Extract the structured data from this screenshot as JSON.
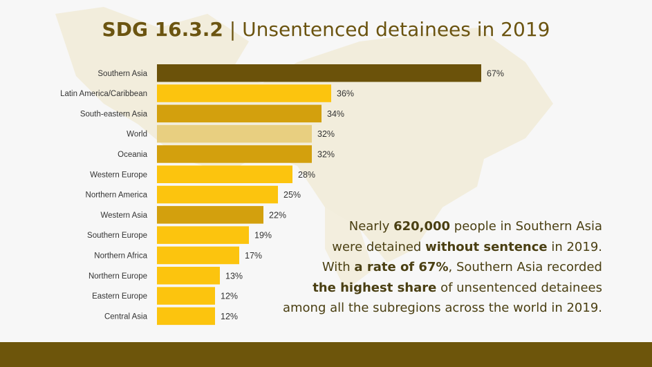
{
  "title": {
    "code": "SDG 16.3.2",
    "separator": " | ",
    "subtitle": "Unsentenced detainees in 2019"
  },
  "callout": {
    "line1": [
      "Nearly ",
      "620,000",
      " people in Southern Asia"
    ],
    "line2": [
      "were detained ",
      "without sentence",
      " in 2019."
    ],
    "line3": [
      "With ",
      "a rate of 67%",
      ", Southern Asia recorded"
    ],
    "line4": [
      "the highest share",
      " of unsentenced detainees"
    ],
    "line5": "among all the subregions across the world in 2019."
  },
  "colors": {
    "highlight": "#6b520a",
    "bright": "#fcc40e",
    "muted": "#d3a00d",
    "world": "#e8cf80",
    "label": "#333333"
  },
  "chart_data": {
    "type": "bar",
    "orientation": "horizontal",
    "title": "SDG 16.3.2 | Unsentenced detainees in 2019",
    "xlabel": "",
    "ylabel": "",
    "unit": "%",
    "xlim": [
      0,
      100
    ],
    "grid": false,
    "categories": [
      "Southern Asia",
      "Latin America/Caribbean",
      "South-eastern Asia",
      "World",
      "Oceania",
      "Western Europe",
      "Northern America",
      "Western Asia",
      "Southern Europe",
      "Northern Africa",
      "Northern Europe",
      "Eastern Europe",
      "Central Asia"
    ],
    "values": [
      67,
      36,
      34,
      32,
      32,
      28,
      25,
      22,
      19,
      17,
      13,
      12,
      12
    ],
    "labels": [
      "67%",
      "36%",
      "34%",
      "32%",
      "32%",
      "28%",
      "25%",
      "22%",
      "19%",
      "17%",
      "13%",
      "12%",
      "12%"
    ],
    "bar_colors": [
      "#6b520a",
      "#fcc40e",
      "#d3a00d",
      "#e8cf80",
      "#d3a00d",
      "#fcc40e",
      "#fcc40e",
      "#d3a00d",
      "#fcc40e",
      "#fcc40e",
      "#fcc40e",
      "#fcc40e",
      "#fcc40e"
    ]
  }
}
